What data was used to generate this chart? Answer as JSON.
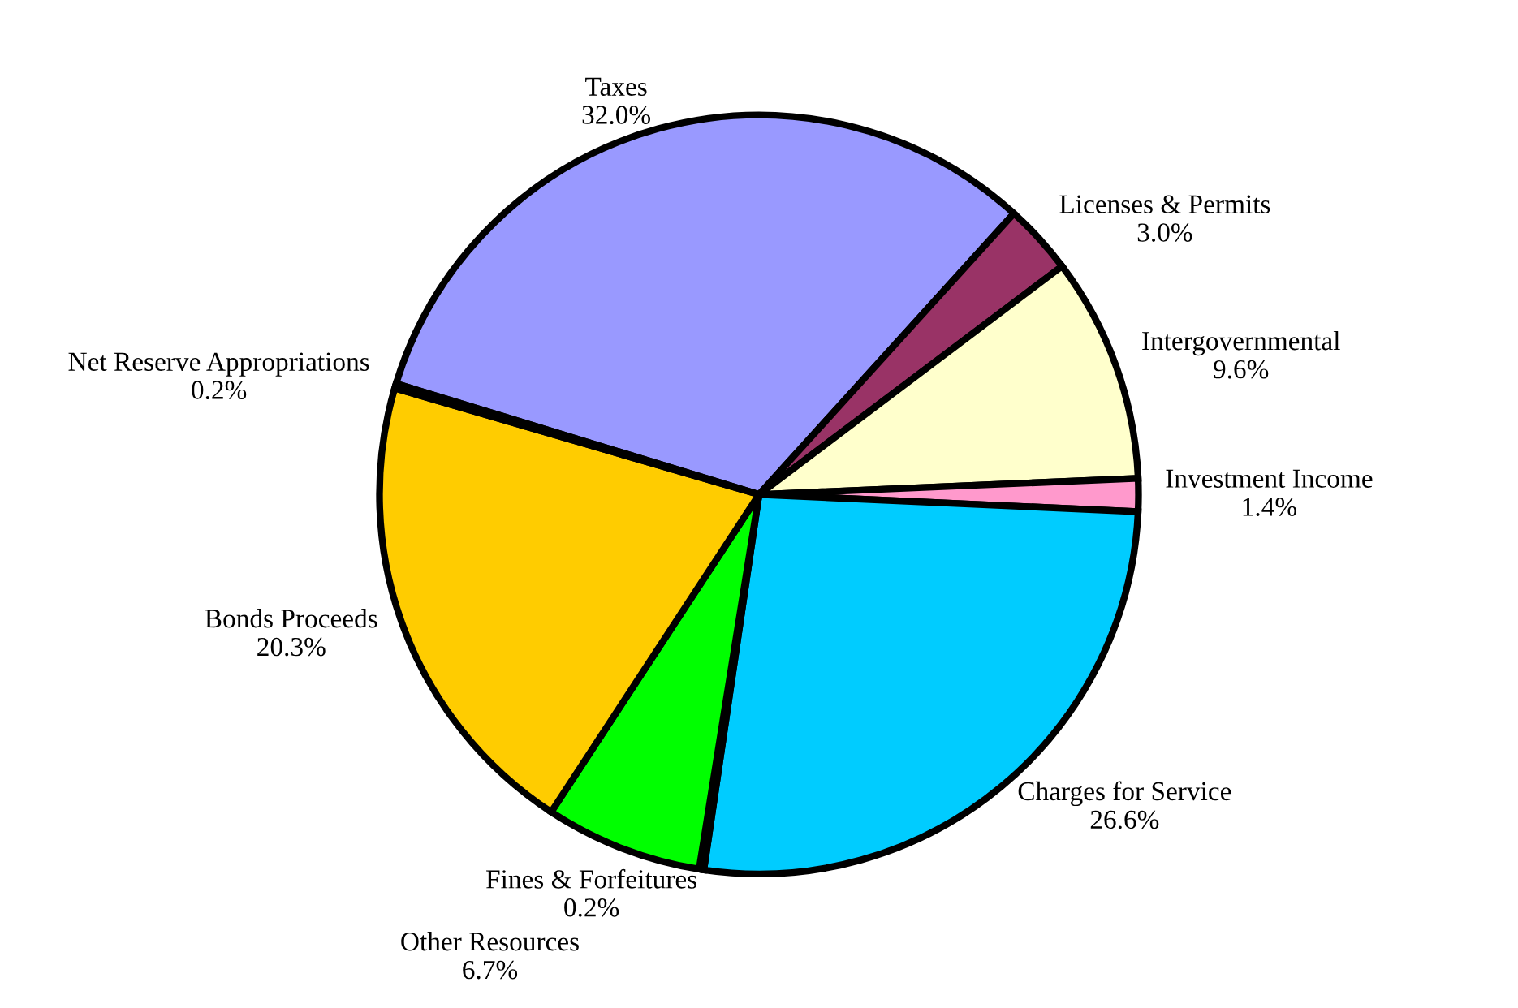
{
  "chart_data": {
    "type": "pie",
    "categories": [
      "Taxes",
      "Licenses & Permits",
      "Intergovernmental",
      "Investment Income",
      "Charges for Service",
      "Fines & Forfeitures",
      "Other Resources",
      "Bonds Proceeds",
      "Net Reserve Appropriations"
    ],
    "values": [
      32.0,
      3.0,
      9.6,
      1.4,
      26.6,
      0.2,
      6.7,
      20.3,
      0.2
    ],
    "value_labels": [
      "32.0%",
      "3.0%",
      "9.6%",
      "1.4%",
      "26.6%",
      "0.2%",
      "6.7%",
      "20.3%",
      "0.2%"
    ],
    "colors": [
      "#9999ff",
      "#993366",
      "#ffffcc",
      "#ff99cc",
      "#00ccff",
      "#0066cc",
      "#00ff00",
      "#ffcc00",
      "#000080"
    ],
    "legend": false
  }
}
